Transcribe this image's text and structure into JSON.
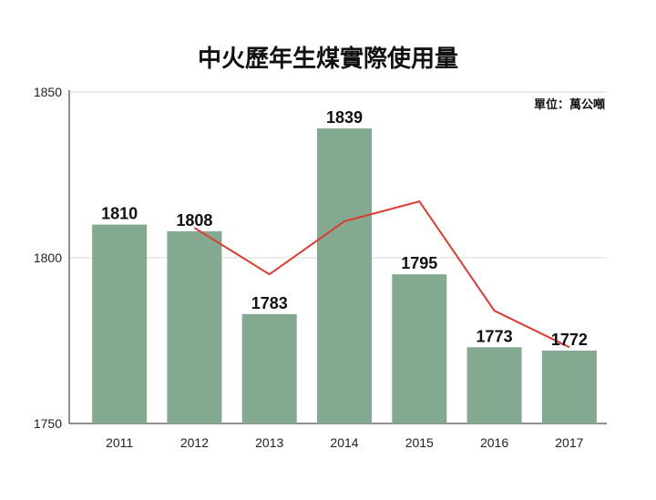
{
  "chart_data": {
    "type": "bar",
    "title": "中火歷年生煤實際使用量",
    "unit_note": "單位：萬公噸",
    "categories": [
      "2011",
      "2012",
      "2013",
      "2014",
      "2015",
      "2016",
      "2017"
    ],
    "values": [
      1810,
      1808,
      1783,
      1839,
      1795,
      1773,
      1772
    ],
    "line_values": [
      null,
      1809,
      1795,
      1811,
      1817,
      1784,
      1773
    ],
    "ylim": [
      1750,
      1850
    ],
    "yticks": [
      1750,
      1800,
      1850
    ],
    "grid": true,
    "legend": "none",
    "colors": {
      "bar": "#83aa90",
      "line": "#e03a30",
      "grid": "#d9d9d9"
    }
  }
}
